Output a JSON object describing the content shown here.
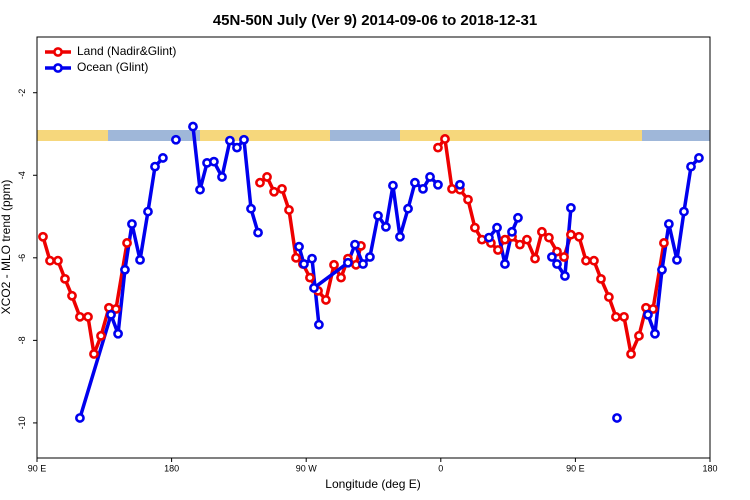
{
  "chart_data": {
    "type": "line",
    "title": "45N-50N July (Ver 9)   2014-09-06 to 2018-12-31",
    "x_label": "Longitude (deg E)",
    "y_label": "XCO2 - MLO trend (ppm)",
    "xlim": [
      90,
      540
    ],
    "ylim": [
      -10.85,
      -0.65
    ],
    "xticks": [
      {
        "value": 90,
        "label": "90 E"
      },
      180,
      {
        "value": 270,
        "label": "90 W"
      },
      {
        "value": 360,
        "label": "0"
      },
      {
        "value": 450,
        "label": "90 E"
      },
      {
        "value": 540,
        "label": "180"
      }
    ],
    "yticks": [
      -2,
      -4,
      -6,
      -8,
      -10
    ],
    "legend": "upper left",
    "series": [
      {
        "name": "Land (Nadir&Glint)",
        "color": "#ee0000",
        "x": [
          94.0,
          98.7,
          104.0,
          108.7,
          113.4,
          118.7,
          124.1,
          128.1,
          132.8,
          138.1,
          142.8,
          150.2,
          null,
          239.1,
          243.8,
          248.5,
          253.8,
          258.5,
          263.2,
          267.8,
          272.5,
          277.9,
          283.2,
          288.6,
          293.3,
          297.9,
          303.3,
          306.6,
          null,
          358.1,
          362.8,
          367.5,
          372.8,
          378.2,
          382.8,
          387.5,
          393.5,
          398.2,
          402.9,
          407.6,
          412.9,
          417.6,
          423.0,
          427.6,
          432.3,
          437.7,
          442.4,
          447.0,
          452.4,
          457.1,
          462.4,
          467.1,
          472.4,
          477.1,
          482.5,
          487.2,
          492.5,
          497.2,
          501.9,
          509.2
        ],
        "values": [
          -5.49,
          -6.07,
          -6.07,
          -6.51,
          -6.92,
          -7.43,
          -7.43,
          -8.33,
          -7.89,
          -7.21,
          -7.24,
          -5.64,
          null,
          -4.18,
          -4.04,
          -4.4,
          -4.33,
          -4.84,
          -6.0,
          -6.15,
          -6.48,
          -6.8,
          -7.02,
          -6.17,
          -6.48,
          -6.02,
          -6.17,
          -5.71,
          null,
          -3.33,
          -3.12,
          -4.33,
          -4.35,
          -4.59,
          -5.27,
          -5.56,
          -5.64,
          -5.81,
          -5.56,
          -5.49,
          -5.68,
          -5.56,
          -6.02,
          -5.37,
          -5.51,
          -5.85,
          -5.98,
          -5.44,
          -5.49,
          -6.07,
          -6.07,
          -6.51,
          -6.95,
          -7.43,
          -7.43,
          -8.33,
          -7.89,
          -7.21,
          -7.24,
          -5.64
        ]
      },
      {
        "name": "Ocean (Glint)",
        "color": "#0000ee",
        "x": [
          118.7,
          139.5,
          144.2,
          148.8,
          153.5,
          158.9,
          164.2,
          168.9,
          174.2,
          null,
          182.9,
          null,
          194.3,
          199.0,
          203.7,
          208.3,
          213.7,
          219.0,
          223.7,
          228.4,
          233.1,
          237.8,
          null,
          265.2,
          268.5,
          273.9,
          278.5,
          null,
          275.2,
          297.9,
          302.6,
          308.0,
          312.6,
          318.0,
          323.3,
          328.0,
          332.7,
          338.1,
          342.7,
          348.1,
          352.8,
          358.1,
          null,
          372.8,
          null,
          392.2,
          397.6,
          402.9,
          407.6,
          411.6,
          null,
          434.3,
          437.7,
          443.0,
          447.0,
          null,
          477.8,
          null,
          498.5,
          503.2,
          507.9,
          512.5,
          517.9,
          522.6,
          527.3,
          532.6
        ],
        "values": [
          -9.88,
          -7.38,
          -7.84,
          -6.29,
          -5.18,
          -6.05,
          -4.88,
          -3.79,
          -3.58,
          null,
          -3.14,
          null,
          -2.82,
          -4.35,
          -3.7,
          -3.67,
          -4.04,
          -3.16,
          -3.33,
          -3.14,
          -4.81,
          -5.39,
          null,
          -5.73,
          -6.15,
          -6.02,
          -7.62,
          null,
          -6.73,
          -6.12,
          -5.68,
          -6.15,
          -5.98,
          -4.98,
          -5.25,
          -4.25,
          -5.49,
          -4.81,
          -4.18,
          -4.33,
          -4.04,
          -4.23,
          null,
          -4.23,
          null,
          -5.51,
          -5.27,
          -6.15,
          -5.37,
          -5.03,
          null,
          -5.98,
          -6.15,
          -6.44,
          -4.79,
          null,
          -9.88,
          null,
          -7.38,
          -7.84,
          -6.29,
          -5.18,
          -6.05,
          -4.88,
          -3.79,
          -3.58
        ]
      }
    ]
  }
}
